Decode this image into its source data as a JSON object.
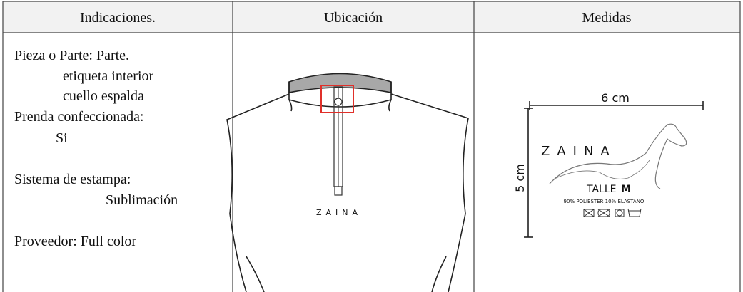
{
  "table": {
    "headers": [
      "Indicaciones.",
      "Ubicación",
      "Medidas"
    ],
    "indications": [
      "Pieza o Parte: Parte.",
      "etiqueta interior",
      "cuello espalda",
      "Prenda confeccionada:",
      "Si",
      "Sistema de estampa:",
      "Sublimación",
      "Proveedor: Full color"
    ],
    "location": {
      "garment_text": "ZAINA"
    },
    "measures": {
      "width": "6 cm",
      "height": "5 cm",
      "brand": "ZAINA",
      "size_label": "TALLE",
      "size": "M",
      "composition": "90% POLIESTER 10% ELASTANO"
    }
  }
}
